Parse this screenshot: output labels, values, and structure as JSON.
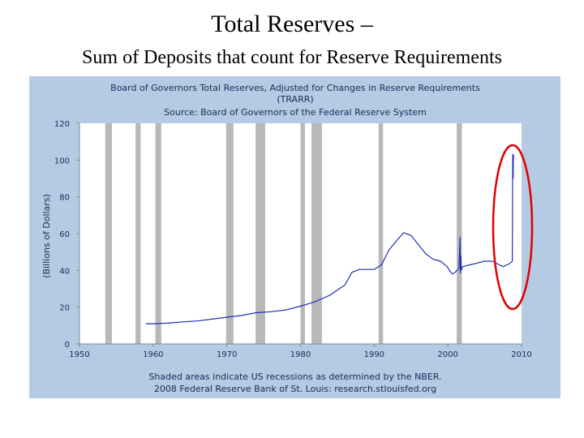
{
  "slide": {
    "title": "Total Reserves –",
    "subtitle": "Sum of Deposits that count for Reserve Requirements"
  },
  "colors": {
    "panel_background": "#b4cbe3",
    "plot_background": "#ffffff",
    "series_line": "#1f2fb4",
    "recession_shading": "#b8b8b8",
    "highlight_ellipse": "#e00000"
  },
  "chart_data": {
    "type": "line",
    "title": "Board of Governors Total Reserves, Adjusted for Changes in Reserve Requirements",
    "title_code": "(TRARR)",
    "subtitle": "Source: Board of Governors of the Federal Reserve System",
    "ylabel": "(Billions of Dollars)",
    "xlabel": "",
    "xlim": [
      1950,
      2010
    ],
    "ylim": [
      0,
      120
    ],
    "x_ticks": [
      "1950",
      "1960",
      "1970",
      "1980",
      "1990",
      "2000",
      "2010"
    ],
    "y_ticks": [
      "0",
      "20",
      "40",
      "60",
      "80",
      "100",
      "120"
    ],
    "grid": false,
    "footer_lines": [
      "Shaded areas indicate US recessions as determined by the NBER.",
      "2008 Federal Reserve Bank of St. Louis: research.stlouisfed.org"
    ],
    "recessions": [
      [
        1953.5,
        1954.4
      ],
      [
        1957.6,
        1958.3
      ],
      [
        1960.3,
        1961.1
      ],
      [
        1969.9,
        1970.9
      ],
      [
        1973.9,
        1975.2
      ],
      [
        1980.0,
        1980.6
      ],
      [
        1981.5,
        1982.9
      ],
      [
        1990.6,
        1991.2
      ],
      [
        2001.2,
        2001.9
      ]
    ],
    "series": [
      {
        "x": [
          1959.0,
          1960,
          1962,
          1964,
          1966,
          1968,
          1970,
          1972,
          1974,
          1976,
          1978,
          1980,
          1982,
          1984,
          1986,
          1987,
          1988,
          1990,
          1991,
          1992,
          1993,
          1994,
          1995,
          1996,
          1997,
          1998,
          1999,
          1999.9,
          2000.2,
          2000.6,
          2001.0,
          2001.5,
          2001.65,
          2001.7,
          2001.75,
          2001.8,
          2001.9,
          2002,
          2003,
          2004,
          2005,
          2006,
          2007,
          2007.5,
          2008.0,
          2008.3,
          2008.6,
          2008.75,
          2008.8,
          2008.85,
          2008.9
        ],
        "y": [
          11,
          11,
          11.3,
          12,
          12.5,
          13.5,
          14.5,
          15.5,
          17,
          17.5,
          18.5,
          20.5,
          23,
          26.5,
          32,
          39,
          40.5,
          40.5,
          43,
          51,
          56,
          60.5,
          59,
          54,
          49,
          46,
          45,
          42,
          40,
          38,
          39,
          41,
          58,
          38.5,
          48,
          40,
          41,
          42,
          43,
          44,
          45,
          45,
          43,
          42,
          43,
          43.5,
          44.5,
          45,
          103,
          90,
          103
        ]
      }
    ]
  }
}
